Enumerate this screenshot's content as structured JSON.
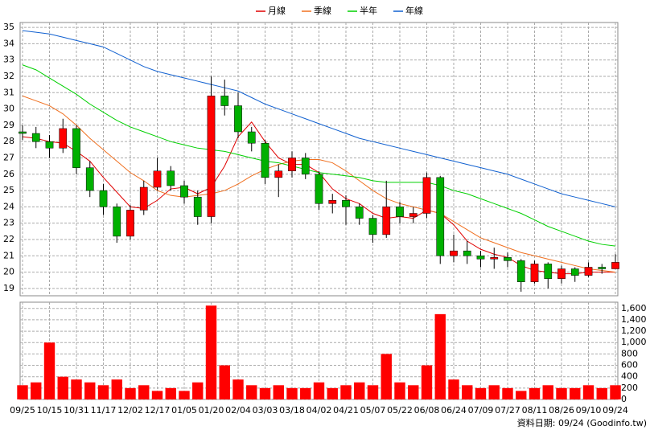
{
  "chart_data": [
    {
      "type": "candlestick",
      "legend": "top",
      "grid": true,
      "ylim": [
        18.55,
        35.3
      ],
      "yticks": [
        19,
        20,
        21,
        22,
        23,
        24,
        25,
        26,
        27,
        28,
        29,
        30,
        31,
        32,
        33,
        34,
        35
      ],
      "up_color": "#ff0000",
      "down_color": "#00b000",
      "open": [
        28.6,
        28.5,
        28.0,
        27.6,
        28.8,
        26.4,
        25.0,
        24.0,
        22.2,
        23.8,
        25.2,
        26.2,
        25.3,
        24.6,
        23.4,
        30.8,
        30.2,
        28.6,
        27.9,
        25.8,
        26.2,
        27.0,
        26.0,
        24.2,
        24.4,
        24.0,
        23.3,
        22.3,
        24.0,
        23.4,
        23.6,
        25.8,
        21.0,
        21.3,
        21.0,
        20.8,
        20.9,
        20.7,
        19.4,
        20.5,
        19.6,
        20.2,
        19.8,
        20.3,
        20.2
      ],
      "high": [
        29.0,
        28.9,
        28.4,
        29.4,
        29.0,
        26.8,
        25.4,
        24.2,
        24.1,
        25.6,
        27.0,
        26.5,
        25.6,
        25.0,
        32.0,
        31.8,
        31.0,
        28.9,
        28.1,
        26.6,
        27.4,
        27.3,
        26.2,
        24.8,
        24.7,
        24.2,
        23.5,
        25.6,
        24.3,
        24.0,
        26.1,
        25.9,
        22.3,
        21.9,
        21.3,
        21.5,
        21.2,
        20.8,
        20.7,
        20.6,
        20.4,
        20.3,
        20.6,
        20.5,
        21.1
      ],
      "low": [
        28.1,
        27.6,
        27.0,
        27.3,
        26.0,
        24.6,
        23.5,
        21.8,
        22.0,
        23.5,
        25.0,
        25.0,
        24.2,
        22.9,
        23.0,
        29.6,
        28.2,
        27.4,
        25.4,
        24.6,
        25.8,
        25.7,
        23.8,
        23.6,
        22.9,
        22.9,
        21.8,
        22.1,
        23.0,
        23.0,
        23.3,
        20.5,
        20.6,
        20.5,
        20.3,
        20.2,
        20.3,
        18.8,
        19.3,
        19.0,
        19.3,
        19.4,
        19.7,
        19.9,
        20.3
      ],
      "close": [
        28.5,
        28.0,
        27.6,
        28.8,
        26.4,
        25.0,
        24.0,
        22.2,
        23.8,
        25.2,
        26.2,
        25.3,
        24.6,
        23.4,
        30.8,
        30.2,
        28.6,
        27.9,
        25.8,
        26.2,
        27.0,
        26.0,
        24.2,
        24.4,
        24.0,
        23.3,
        22.3,
        24.0,
        23.4,
        23.6,
        25.8,
        21.0,
        21.3,
        21.0,
        20.8,
        20.9,
        20.7,
        19.4,
        20.5,
        19.6,
        20.2,
        19.8,
        20.3,
        20.2,
        20.6
      ],
      "series": [
        {
          "name": "月線",
          "color": "#e00000",
          "values": [
            28.3,
            28.2,
            28.0,
            27.9,
            27.4,
            26.8,
            25.8,
            24.9,
            24.0,
            23.9,
            24.4,
            25.1,
            25.2,
            24.8,
            25.2,
            26.5,
            28.3,
            29.2,
            28.0,
            27.0,
            26.6,
            26.6,
            26.1,
            25.1,
            24.5,
            24.2,
            23.6,
            23.3,
            23.4,
            23.3,
            23.8,
            23.6,
            22.9,
            21.9,
            21.4,
            21.1,
            20.9,
            20.4,
            20.1,
            20.0,
            19.9,
            19.9,
            20.0,
            20.0,
            20.0
          ]
        },
        {
          "name": "季線",
          "color": "#f07020",
          "values": [
            30.8,
            30.5,
            30.2,
            29.7,
            29.0,
            28.2,
            27.5,
            26.8,
            26.1,
            25.6,
            25.0,
            24.7,
            24.6,
            24.7,
            24.8,
            25.0,
            25.4,
            25.9,
            26.3,
            26.6,
            26.8,
            26.9,
            26.9,
            26.7,
            26.2,
            25.6,
            25.0,
            24.5,
            24.2,
            24.0,
            23.8,
            23.6,
            23.1,
            22.6,
            22.1,
            21.8,
            21.5,
            21.2,
            21.0,
            20.8,
            20.6,
            20.4,
            20.2,
            20.1,
            20.0
          ]
        },
        {
          "name": "半年",
          "color": "#00d000",
          "values": [
            32.7,
            32.4,
            31.9,
            31.4,
            30.9,
            30.3,
            29.8,
            29.3,
            28.9,
            28.6,
            28.3,
            28.0,
            27.8,
            27.6,
            27.5,
            27.4,
            27.2,
            27.0,
            26.8,
            26.7,
            26.5,
            26.3,
            26.1,
            26.0,
            25.9,
            25.8,
            25.6,
            25.5,
            25.5,
            25.5,
            25.5,
            25.3,
            25.0,
            24.8,
            24.5,
            24.2,
            23.9,
            23.6,
            23.2,
            22.8,
            22.5,
            22.2,
            21.9,
            21.7,
            21.6
          ]
        },
        {
          "name": "年線",
          "color": "#1060d0",
          "values": [
            34.8,
            34.7,
            34.6,
            34.4,
            34.2,
            34.0,
            33.8,
            33.4,
            33.0,
            32.6,
            32.3,
            32.1,
            31.9,
            31.7,
            31.5,
            31.3,
            31.1,
            30.7,
            30.3,
            30.0,
            29.7,
            29.4,
            29.1,
            28.8,
            28.5,
            28.2,
            28.0,
            27.8,
            27.6,
            27.4,
            27.2,
            27.0,
            26.8,
            26.6,
            26.4,
            26.2,
            26.0,
            25.7,
            25.4,
            25.1,
            24.8,
            24.6,
            24.4,
            24.2,
            24.0
          ]
        }
      ]
    },
    {
      "type": "bar",
      "color": "#ff0000",
      "grid": true,
      "ylim": [
        0,
        1710
      ],
      "yticks": [
        0,
        200,
        400,
        600,
        800,
        {
          "value": 1000,
          "label": "1,000"
        },
        {
          "value": 1200,
          "label": "1,200"
        },
        {
          "value": 1400,
          "label": "1,400"
        },
        {
          "value": 1600,
          "label": "1,600"
        }
      ],
      "categories": [
        "09/25",
        null,
        "10/15",
        null,
        "10/31",
        null,
        "11/17",
        null,
        "12/02",
        null,
        "12/17",
        null,
        "01/05",
        null,
        "01/20",
        null,
        "02/04",
        null,
        "03/03",
        null,
        "03/18",
        null,
        "04/02",
        null,
        "04/21",
        null,
        "05/07",
        null,
        "05/22",
        null,
        "06/08",
        null,
        "06/24",
        null,
        "07/09",
        null,
        "07/27",
        null,
        "08/11",
        null,
        "08/26",
        null,
        "09/10",
        null,
        "09/24"
      ],
      "values": [
        250,
        300,
        1000,
        400,
        350,
        300,
        250,
        350,
        200,
        250,
        150,
        200,
        150,
        300,
        1650,
        600,
        350,
        250,
        200,
        250,
        200,
        200,
        300,
        200,
        250,
        300,
        250,
        800,
        300,
        250,
        600,
        1500,
        350,
        250,
        200,
        250,
        200,
        150,
        200,
        250,
        200,
        200,
        250,
        200,
        250
      ],
      "annotation": "資料日期: 09/24 (Goodinfo.tw)"
    }
  ]
}
